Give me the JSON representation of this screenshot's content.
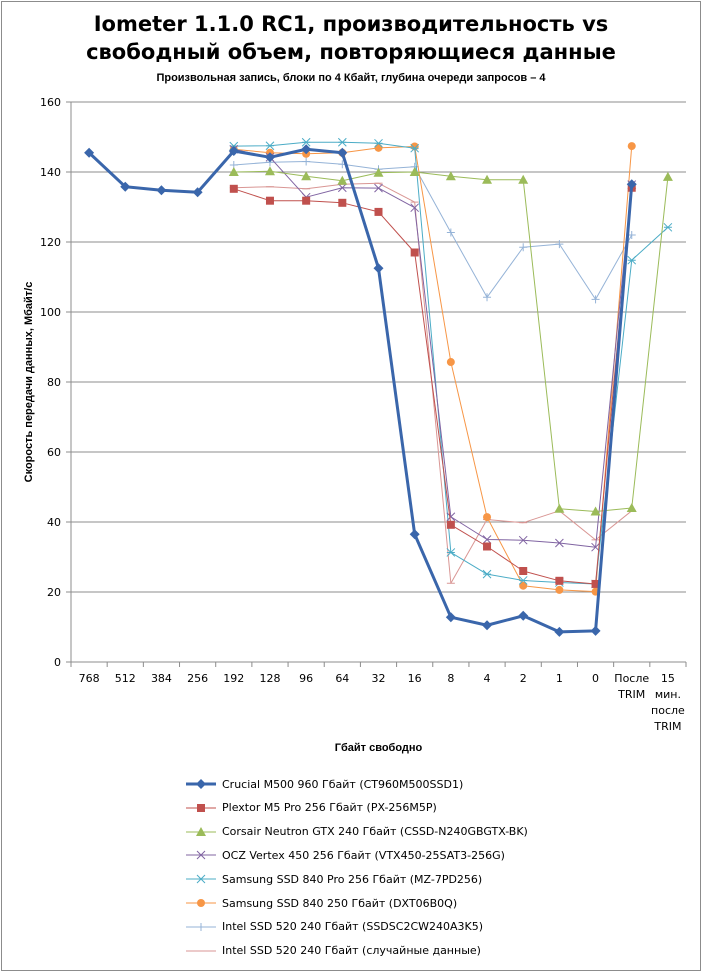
{
  "chart_data": {
    "type": "line",
    "title_line1": "Iometer 1.1.0 RC1, производительность vs",
    "title_line2": "свободный объем, повторяющиеся данные",
    "subtitle": "Произвольная  запись, блоки по 4 Кбайт, глубина очереди запросов – 4",
    "xlabel": "Гбайт свободно",
    "ylabel": "Скорость передачи данных, Мбайт/с",
    "ylim": [
      0,
      160
    ],
    "yticks": [
      0,
      20,
      40,
      60,
      80,
      100,
      120,
      140,
      160
    ],
    "grid": true,
    "legend_position": "bottom",
    "categories": [
      "768",
      "512",
      "384",
      "256",
      "192",
      "128",
      "96",
      "64",
      "32",
      "16",
      "8",
      "4",
      "2",
      "1",
      "0",
      "После TRIM",
      "15 мин. после TRIM"
    ],
    "category_labels": [
      [
        "768"
      ],
      [
        "512"
      ],
      [
        "384"
      ],
      [
        "256"
      ],
      [
        "192"
      ],
      [
        "128"
      ],
      [
        "96"
      ],
      [
        "64"
      ],
      [
        "32"
      ],
      [
        "16"
      ],
      [
        "8"
      ],
      [
        "4"
      ],
      [
        "2"
      ],
      [
        "1"
      ],
      [
        "0"
      ],
      [
        "После",
        "TRIM"
      ],
      [
        "15",
        "мин.",
        "после",
        "TRIM"
      ]
    ],
    "series": [
      {
        "name": "Crucial M500 960 Гбайт (CT960M500SSD1)",
        "color": "#3a66ab",
        "marker": "diamond",
        "width": 3,
        "values": [
          145.5,
          135.8,
          134.8,
          134.2,
          146,
          144.2,
          146.5,
          145.5,
          112.5,
          36.5,
          12.8,
          10.5,
          13.2,
          8.6,
          8.9,
          136.5,
          null
        ]
      },
      {
        "name": "Plextor M5 Pro 256 Гбайт (PX-256M5P)",
        "color": "#c0504d",
        "marker": "square",
        "width": 1,
        "values": [
          null,
          null,
          null,
          null,
          135.2,
          131.8,
          131.8,
          131.2,
          128.6,
          117,
          39.2,
          33,
          26,
          23.2,
          22.3,
          135.5,
          null
        ]
      },
      {
        "name": "Corsair Neutron GTX 240 Гбайт (CSSD-N240GBGTX-BK)",
        "color": "#9bbb59",
        "marker": "triangle",
        "width": 1,
        "values": [
          null,
          null,
          null,
          null,
          140,
          140.2,
          138.8,
          137.5,
          139.8,
          140,
          138.8,
          137.8,
          137.8,
          43.8,
          43,
          44,
          138.6
        ]
      },
      {
        "name": "OCZ Vertex  450 256 Гбайт (VTX450-25SAT3-256G)",
        "color": "#8064a2",
        "marker": "x",
        "width": 1,
        "values": [
          null,
          null,
          null,
          null,
          146.5,
          144.2,
          132.8,
          135.5,
          135.4,
          129.8,
          41.5,
          35,
          34.8,
          34,
          32.8,
          136.4,
          null
        ]
      },
      {
        "name": "Samsung SSD 840 Pro 256 Гбайт (MZ-7PD256)",
        "color": "#4bacc6",
        "marker": "star",
        "width": 1,
        "values": [
          null,
          null,
          null,
          null,
          147.4,
          147.5,
          148.5,
          148.5,
          148.2,
          146.8,
          31.3,
          25.1,
          23.3,
          22.7,
          22.3,
          114.8,
          124.2
        ]
      },
      {
        "name": "Samsung SSD 840 250 Гбайт (DXT06B0Q)",
        "color": "#f79646",
        "marker": "circle",
        "width": 1,
        "values": [
          null,
          null,
          null,
          null,
          146.5,
          145.5,
          145.2,
          145.5,
          146.9,
          147.3,
          85.7,
          41.4,
          21.8,
          20.6,
          20.1,
          147.4,
          null
        ]
      },
      {
        "name": "Intel SSD 520 240 Гбайт (SSDSC2CW240A3K5)",
        "color": "#95b3d7",
        "marker": "plus",
        "width": 1,
        "values": [
          null,
          null,
          null,
          null,
          142,
          142.8,
          143,
          142.2,
          140.8,
          141.5,
          122.7,
          104.2,
          118.5,
          119.4,
          103.6,
          122,
          null
        ]
      },
      {
        "name": "Intel SSD 520 240 Гбайт (случайные данные)",
        "color": "#d99694",
        "marker": "dash",
        "width": 1,
        "values": [
          null,
          null,
          null,
          null,
          135.5,
          135.8,
          135.2,
          136.5,
          136.8,
          131.4,
          22.5,
          40.7,
          39.8,
          43.2,
          34.9,
          43.2,
          null
        ]
      }
    ]
  }
}
